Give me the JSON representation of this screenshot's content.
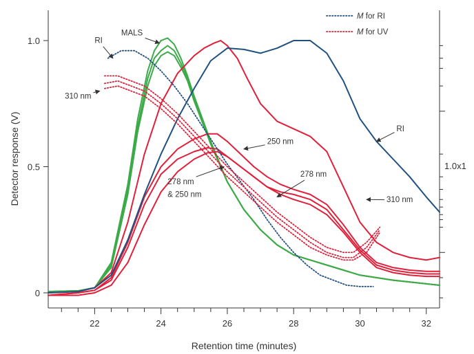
{
  "chart_data": {
    "type": "line",
    "xlabel": "Retention time (minutes)",
    "ylabel": "Detector response (V)",
    "xlim": [
      20.6,
      32.4
    ],
    "ylim": [
      -0.06,
      1.12
    ],
    "x_ticks": [
      22,
      24,
      26,
      28,
      30,
      32
    ],
    "y_ticks": [
      0,
      0.5,
      1.0
    ],
    "y_tick_labels": [
      "0",
      "0.5",
      "1.0"
    ],
    "right_axis_label": "1.0x1",
    "grid": false,
    "legend_position": "top-right",
    "colors": {
      "mals": "#3caa48",
      "rayleigh": "#e0203a",
      "ri": "#1f5080",
      "axis": "#333333"
    },
    "legend": [
      {
        "label_prefix": "M",
        "label_suffix": " for RI",
        "color": "#1f5080",
        "style": "dotted"
      },
      {
        "label_prefix": "M",
        "label_suffix": " for UV",
        "color": "#e0203a",
        "style": "dotted"
      }
    ],
    "annotations": [
      {
        "text": "MALS",
        "x": 22.8,
        "y": 1.02,
        "arrow_to": [
          23.95,
          0.99
        ]
      },
      {
        "text": "RI",
        "x": 22.0,
        "y": 0.99,
        "arrow_to": [
          22.55,
          0.93
        ]
      },
      {
        "text": "310 nm",
        "x": 21.1,
        "y": 0.77,
        "arrow_to": [
          22.15,
          0.8
        ]
      },
      {
        "text": "250 nm",
        "x": 27.2,
        "y": 0.59,
        "arrow_to": [
          26.5,
          0.57
        ]
      },
      {
        "text": "278 nm",
        "x": 28.2,
        "y": 0.46,
        "arrow_to": [
          27.5,
          0.38
        ]
      },
      {
        "text": "278 nm",
        "x": 24.2,
        "y": 0.43,
        "arrow_to": [
          25.9,
          0.5
        ]
      },
      {
        "text": "& 250 nm",
        "x": 24.2,
        "y": 0.38
      },
      {
        "text": "RI",
        "x": 31.1,
        "y": 0.64,
        "arrow_to": [
          30.5,
          0.6
        ]
      },
      {
        "text": "310 nm",
        "x": 30.8,
        "y": 0.36,
        "arrow_to": [
          30.2,
          0.37
        ]
      }
    ],
    "series": [
      {
        "color": "mals",
        "style": "solid",
        "x": [
          20.6,
          21.5,
          22.0,
          22.5,
          23.0,
          23.3,
          23.6,
          23.8,
          24.0,
          24.2,
          24.4,
          24.6,
          24.8,
          25.0,
          25.5,
          26.0,
          26.5,
          27.0,
          27.5,
          28.0,
          29.0,
          30.0,
          31.0,
          32.4
        ],
        "y": [
          0.005,
          0.008,
          0.02,
          0.12,
          0.43,
          0.69,
          0.88,
          0.96,
          1.0,
          1.01,
          0.985,
          0.93,
          0.86,
          0.78,
          0.6,
          0.44,
          0.33,
          0.25,
          0.19,
          0.15,
          0.11,
          0.07,
          0.05,
          0.03
        ]
      },
      {
        "color": "mals",
        "style": "solid",
        "x": [
          20.6,
          21.5,
          22.0,
          22.5,
          23.0,
          23.3,
          23.6,
          23.8,
          24.0,
          24.2,
          24.4,
          24.6,
          24.8,
          25.0,
          25.5,
          26.0,
          26.5,
          27.0,
          27.5,
          28.0,
          29.0,
          30.0,
          31.0,
          32.4
        ],
        "y": [
          0.005,
          0.008,
          0.02,
          0.11,
          0.41,
          0.66,
          0.85,
          0.93,
          0.96,
          0.98,
          0.96,
          0.91,
          0.85,
          0.77,
          0.59,
          0.44,
          0.33,
          0.25,
          0.19,
          0.15,
          0.11,
          0.07,
          0.05,
          0.03
        ]
      },
      {
        "color": "mals",
        "style": "solid",
        "x": [
          20.6,
          21.5,
          22.0,
          22.5,
          23.0,
          23.3,
          23.6,
          23.8,
          24.0,
          24.2,
          24.4,
          24.6,
          24.8,
          25.0,
          25.5,
          26.0,
          26.5,
          27.0,
          27.5,
          28.0,
          29.0,
          30.0,
          31.0,
          32.4
        ],
        "y": [
          0.005,
          0.008,
          0.02,
          0.1,
          0.39,
          0.64,
          0.82,
          0.9,
          0.94,
          0.955,
          0.94,
          0.895,
          0.84,
          0.76,
          0.59,
          0.44,
          0.33,
          0.25,
          0.19,
          0.15,
          0.11,
          0.07,
          0.05,
          0.03
        ]
      },
      {
        "color": "rayleigh",
        "style": "solid",
        "x": [
          20.6,
          21.5,
          22.0,
          22.5,
          23.0,
          23.5,
          24.0,
          24.5,
          25.0,
          25.3,
          25.6,
          25.8,
          26.0,
          26.3,
          26.6,
          27.0,
          27.5,
          28.0,
          28.5,
          29.0,
          29.5,
          30.0,
          30.5,
          31.0,
          31.5,
          32.0,
          32.4
        ],
        "y": [
          0.0,
          0.005,
          0.02,
          0.08,
          0.28,
          0.55,
          0.75,
          0.87,
          0.94,
          0.97,
          0.99,
          1.0,
          0.98,
          0.93,
          0.85,
          0.75,
          0.68,
          0.65,
          0.62,
          0.56,
          0.42,
          0.28,
          0.2,
          0.16,
          0.14,
          0.13,
          0.14
        ]
      },
      {
        "color": "rayleigh",
        "style": "solid",
        "x": [
          20.6,
          21.5,
          22.0,
          22.5,
          23.0,
          23.5,
          24.0,
          24.5,
          25.0,
          25.4,
          25.7,
          26.0,
          26.4,
          26.8,
          27.2,
          27.6,
          28.0,
          28.5,
          29.0,
          29.5,
          30.0,
          30.5,
          31.0,
          31.5,
          32.0,
          32.4
        ],
        "y": [
          -0.01,
          0.0,
          0.01,
          0.06,
          0.2,
          0.38,
          0.5,
          0.57,
          0.61,
          0.63,
          0.63,
          0.6,
          0.55,
          0.5,
          0.46,
          0.43,
          0.41,
          0.39,
          0.35,
          0.27,
          0.18,
          0.12,
          0.1,
          0.09,
          0.085,
          0.085
        ]
      },
      {
        "color": "rayleigh",
        "style": "solid",
        "x": [
          20.6,
          21.5,
          22.0,
          22.5,
          23.0,
          23.5,
          24.0,
          24.5,
          25.0,
          25.4,
          25.7,
          26.0,
          26.4,
          26.8,
          27.2,
          27.6,
          28.0,
          28.5,
          29.0,
          29.5,
          30.0,
          30.5,
          31.0,
          31.5,
          32.0,
          32.4
        ],
        "y": [
          -0.01,
          0.0,
          0.01,
          0.05,
          0.18,
          0.35,
          0.47,
          0.53,
          0.56,
          0.575,
          0.57,
          0.54,
          0.5,
          0.46,
          0.42,
          0.4,
          0.39,
          0.37,
          0.33,
          0.25,
          0.17,
          0.11,
          0.09,
          0.08,
          0.075,
          0.075
        ]
      },
      {
        "color": "rayleigh",
        "style": "solid",
        "x": [
          20.6,
          21.5,
          22.0,
          22.5,
          23.0,
          23.5,
          24.0,
          24.5,
          25.0,
          25.4,
          25.7,
          26.0,
          26.4,
          26.8,
          27.2,
          27.6,
          28.0,
          28.5,
          29.0,
          29.5,
          30.0,
          30.5,
          31.0,
          31.5,
          32.0,
          32.4
        ],
        "y": [
          -0.01,
          -0.01,
          0.0,
          0.03,
          0.12,
          0.27,
          0.4,
          0.48,
          0.53,
          0.555,
          0.56,
          0.54,
          0.5,
          0.46,
          0.42,
          0.39,
          0.37,
          0.35,
          0.31,
          0.24,
          0.16,
          0.1,
          0.08,
          0.07,
          0.065,
          0.065
        ]
      },
      {
        "color": "ri",
        "style": "solid",
        "x": [
          20.6,
          21.5,
          22.0,
          22.5,
          23.0,
          23.5,
          24.0,
          24.5,
          25.0,
          25.5,
          26.0,
          26.5,
          27.0,
          27.5,
          28.0,
          28.5,
          29.0,
          29.5,
          30.0,
          30.5,
          31.0,
          31.5,
          32.0,
          32.4
        ],
        "y": [
          0.0,
          0.005,
          0.02,
          0.07,
          0.21,
          0.39,
          0.55,
          0.69,
          0.81,
          0.92,
          0.97,
          0.965,
          0.95,
          0.97,
          1.0,
          1.0,
          0.95,
          0.84,
          0.69,
          0.6,
          0.53,
          0.46,
          0.38,
          0.32
        ]
      },
      {
        "color": "ri",
        "style": "dotted",
        "x": [
          22.4,
          22.8,
          23.2,
          23.6,
          24.0,
          24.4,
          24.8,
          25.2,
          25.6,
          26.0,
          26.4,
          26.8,
          27.2,
          27.6,
          28.0,
          28.4,
          28.8,
          29.2,
          29.6,
          30.0,
          30.4
        ],
        "y": [
          0.93,
          0.96,
          0.96,
          0.93,
          0.88,
          0.82,
          0.75,
          0.67,
          0.59,
          0.51,
          0.44,
          0.37,
          0.29,
          0.22,
          0.16,
          0.11,
          0.07,
          0.05,
          0.03,
          0.025,
          0.025
        ]
      },
      {
        "color": "rayleigh",
        "style": "dotted",
        "x": [
          22.3,
          22.7,
          23.1,
          23.5,
          24.0,
          24.5,
          25.0,
          25.5,
          26.0,
          26.5,
          27.0,
          27.5,
          28.0,
          28.5,
          29.0,
          29.5,
          29.8,
          30.2,
          30.6
        ],
        "y": [
          0.86,
          0.86,
          0.84,
          0.82,
          0.77,
          0.71,
          0.64,
          0.57,
          0.5,
          0.44,
          0.38,
          0.32,
          0.27,
          0.22,
          0.18,
          0.16,
          0.16,
          0.2,
          0.26
        ]
      },
      {
        "color": "rayleigh",
        "style": "dotted",
        "x": [
          22.3,
          22.7,
          23.1,
          23.5,
          24.0,
          24.5,
          25.0,
          25.5,
          26.0,
          26.5,
          27.0,
          27.5,
          28.0,
          28.5,
          29.0,
          29.5,
          29.8,
          30.2,
          30.6
        ],
        "y": [
          0.83,
          0.84,
          0.82,
          0.8,
          0.75,
          0.69,
          0.62,
          0.55,
          0.48,
          0.42,
          0.36,
          0.3,
          0.25,
          0.2,
          0.16,
          0.14,
          0.14,
          0.18,
          0.25
        ]
      },
      {
        "color": "rayleigh",
        "style": "dotted",
        "x": [
          22.3,
          22.7,
          23.1,
          23.5,
          24.0,
          24.5,
          25.0,
          25.5,
          26.0,
          26.5,
          27.0,
          27.5,
          28.0,
          28.5,
          29.0,
          29.5,
          29.8,
          30.2,
          30.6
        ],
        "y": [
          0.81,
          0.82,
          0.8,
          0.78,
          0.73,
          0.67,
          0.6,
          0.53,
          0.46,
          0.4,
          0.34,
          0.28,
          0.23,
          0.18,
          0.15,
          0.13,
          0.13,
          0.16,
          0.24
        ]
      }
    ]
  }
}
